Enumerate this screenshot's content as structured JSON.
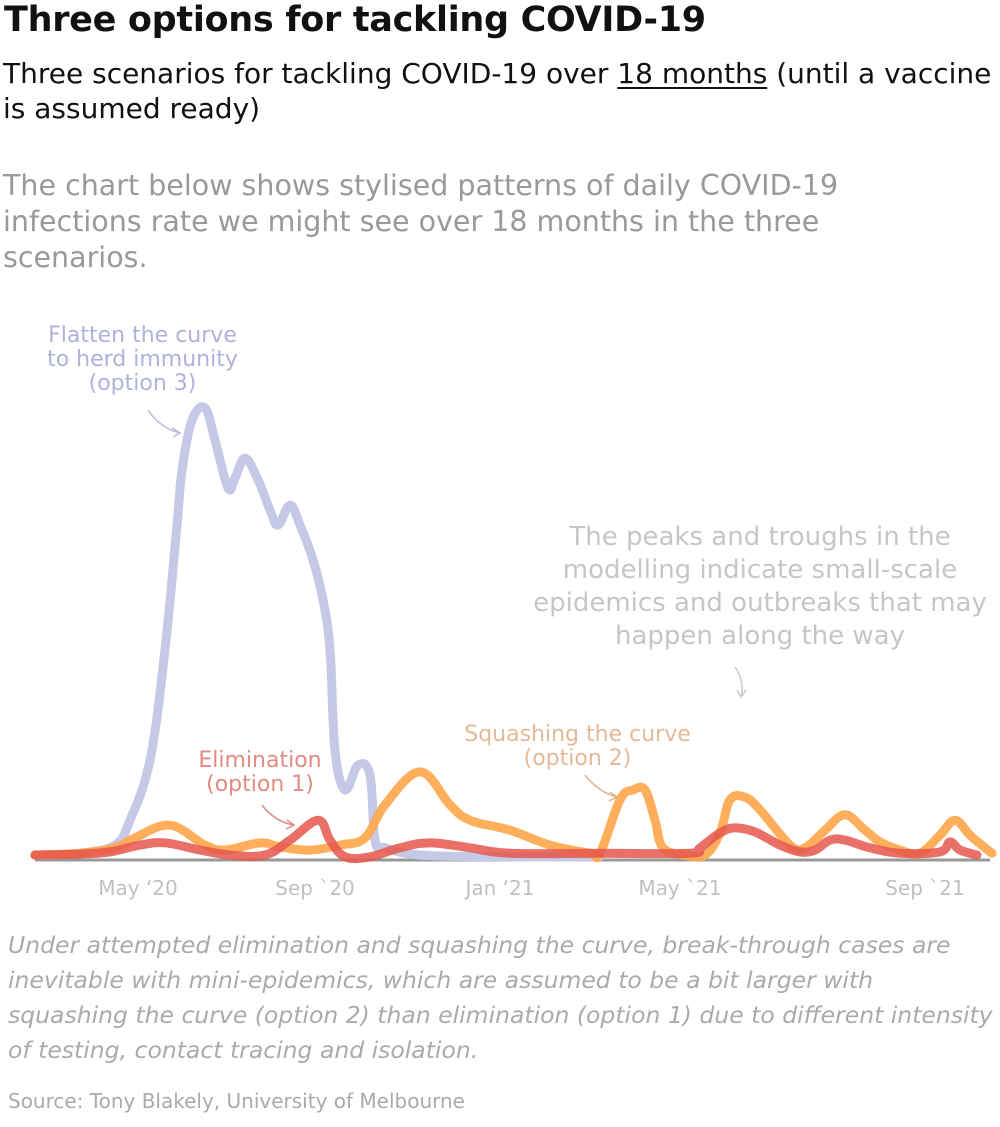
{
  "header": {
    "title": "Three options for tackling COVID-19",
    "subtitle_before": "Three scenarios for tackling COVID-19 over ",
    "subtitle_link": "18 months",
    "subtitle_after": " (until a vaccine is assumed ready)",
    "description": "The chart below shows stylised patterns of daily COVID-19 infections rate we might see over 18 months in the three scenarios."
  },
  "chart_data": {
    "type": "line",
    "title": "",
    "xlabel": "",
    "ylabel": "",
    "grid": false,
    "xlim": [
      0,
      19.2
    ],
    "ylim": [
      0,
      100
    ],
    "x_ticks": [
      {
        "value": 2.06,
        "label": "May ‘20"
      },
      {
        "value": 5.6,
        "label": "Sep `20"
      },
      {
        "value": 9.3,
        "label": "Jan ‘21"
      },
      {
        "value": 12.9,
        "label": "May `21"
      },
      {
        "value": 17.8,
        "label": "Sep `21"
      }
    ],
    "series": [
      {
        "name": "Flatten the curve to herd immunity (option 3)",
        "color": "#c5c9e5",
        "x": [
          0,
          0.9,
          1.6,
          1.9,
          2.3,
          2.6,
          2.84,
          2.94,
          3.14,
          3.4,
          3.6,
          3.86,
          4.0,
          4.2,
          4.46,
          4.7,
          4.86,
          5.1,
          5.3,
          5.56,
          5.76,
          5.9,
          6.0,
          6.2,
          6.46,
          6.7,
          6.8,
          7.0,
          7.7,
          9.3,
          11.3
        ],
        "y": [
          1.1,
          1.5,
          3.3,
          8.8,
          22.1,
          46.5,
          74.1,
          86.3,
          97.3,
          100,
          92.9,
          82.3,
          84.5,
          88.9,
          84.1,
          77.4,
          74.1,
          78.5,
          74.1,
          66.4,
          57.5,
          46.5,
          24.3,
          15.5,
          21.0,
          18.8,
          4.4,
          2.7,
          1.1,
          0.7,
          0.7
        ]
      },
      {
        "name": "Squashing the curve (option 2)",
        "color": "#ffa64a",
        "x": [
          0,
          0.9,
          1.6,
          2.0,
          2.7,
          3.4,
          3.8,
          4.5,
          4.9,
          5.5,
          6.1,
          6.6,
          7.0,
          7.7,
          8.3,
          8.7,
          9.5,
          10.3,
          11.1,
          11.3,
          11.7,
          11.96,
          12.2,
          12.4,
          12.56,
          13.0,
          13.4,
          13.7,
          13.9,
          14.2,
          14.5,
          15.1,
          15.4,
          15.8,
          16.2,
          16.6,
          16.9,
          17.3,
          17.7,
          18.1,
          18.4,
          18.7,
          19.0,
          19.14
        ],
        "y": [
          1.1,
          1.5,
          2.7,
          4.9,
          7.7,
          3.3,
          2.2,
          3.8,
          2.9,
          2.2,
          3.3,
          4.9,
          12.2,
          19.5,
          12.2,
          8.8,
          6.6,
          3.3,
          1.5,
          1.5,
          13.3,
          15.5,
          15.5,
          8.8,
          2.7,
          1.1,
          1.1,
          6.0,
          13.3,
          13.9,
          11.1,
          3.3,
          2.7,
          6.6,
          10.0,
          6.6,
          4.0,
          2.2,
          1.5,
          5.5,
          8.8,
          5.5,
          2.7,
          1.5
        ]
      },
      {
        "name": "Elimination (option 1)",
        "color": "#e5564c",
        "x": [
          0,
          0.9,
          1.5,
          2.1,
          2.6,
          3.3,
          3.9,
          4.6,
          5.1,
          5.66,
          5.9,
          6.2,
          6.7,
          7.3,
          7.9,
          8.7,
          9.5,
          11.3,
          13.1,
          13.3,
          13.7,
          14.0,
          14.4,
          14.9,
          15.3,
          15.6,
          15.9,
          16.2,
          16.7,
          17.3,
          18.1,
          18.3,
          18.5,
          18.84
        ],
        "y": [
          1.1,
          1.3,
          1.8,
          3.3,
          3.8,
          2.2,
          1.1,
          1.1,
          4.4,
          8.8,
          4.4,
          0.7,
          0.7,
          2.7,
          3.8,
          2.7,
          1.5,
          1.5,
          1.5,
          2.7,
          6.0,
          7.1,
          6.2,
          3.3,
          1.8,
          2.2,
          4.4,
          4.4,
          2.7,
          1.5,
          1.8,
          4.0,
          2.2,
          1.1
        ]
      }
    ],
    "annotations": {
      "blue_line1": "Flatten the curve",
      "blue_line2": "to herd immunity",
      "blue_line3": "(option 3)",
      "red_line1": "Elimination",
      "red_line2": "(option 1)",
      "orange_line1": "Squashing the curve",
      "orange_line2": "(option 2)",
      "note": "The peaks and troughs in the modelling indicate small-scale epidemics and outbreaks that may happen along the way"
    },
    "axis_color": "#999999"
  },
  "footer": {
    "caption": "Under attempted elimination and squashing the curve, break-through cases are inevitable with mini-epidemics, which are assumed to be a bit larger with squashing the curve (option 2) than elimination (option 1) due to different intensity of testing, contact tracing and isolation.",
    "source": "Source: Tony Blakely, University of Melbourne"
  }
}
